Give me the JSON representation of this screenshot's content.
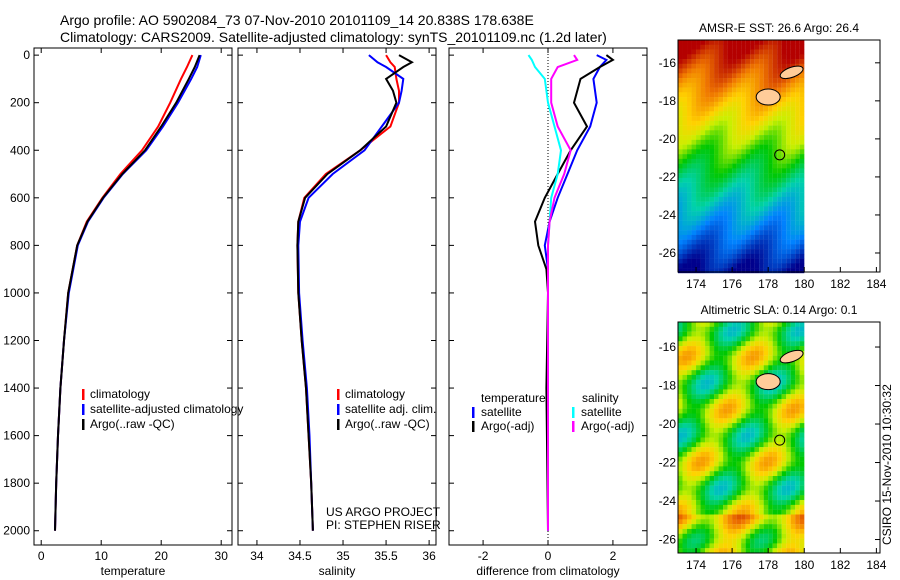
{
  "title_line1": "Argo profile: AO 5902084_73 07-Nov-2010 20101109_14 20.838S 178.638E",
  "title_line2": "Climatology: CARS2009. Satellite-adjusted climatology: synTS_20101109.nc (1.2d later)",
  "side_label": "CSIRO 15-Nov-2010 10:30:32",
  "colors": {
    "climatology": "#ff0000",
    "satellite": "#0000ff",
    "argo": "#000000",
    "sal_sat": "#00ffff",
    "sal_argo": "#ff00ff",
    "land": "#ffcc99"
  },
  "chart_data": [
    {
      "type": "line",
      "id": "temp",
      "xlabel": "temperature",
      "xlim": [
        -1.2,
        31.8
      ],
      "ylim": [
        2060,
        -30
      ],
      "xticks": [
        0,
        10,
        20,
        30
      ],
      "yticks": [
        0,
        200,
        400,
        600,
        800,
        1000,
        1200,
        1400,
        1600,
        1800,
        2000
      ],
      "depth": [
        0,
        50,
        100,
        200,
        300,
        400,
        500,
        600,
        700,
        800,
        1000,
        1200,
        1400,
        1600,
        1800,
        2000
      ],
      "series": [
        {
          "name": "climatology",
          "color": "climatology",
          "values": [
            25.2,
            24.3,
            23.3,
            21.5,
            19.5,
            16.8,
            13.2,
            10.2,
            7.6,
            6.0,
            4.5,
            3.8,
            3.2,
            2.8,
            2.5,
            2.3
          ]
        },
        {
          "name": "satellite-adjusted climatology",
          "color": "satellite",
          "values": [
            26.6,
            26.0,
            25.0,
            22.8,
            20.3,
            17.5,
            13.6,
            10.4,
            7.8,
            6.1,
            4.6,
            3.8,
            3.2,
            2.8,
            2.5,
            2.3
          ]
        },
        {
          "name": "Argo(..raw -QC)",
          "color": "argo",
          "values": [
            26.4,
            25.6,
            24.6,
            22.5,
            20.0,
            17.3,
            13.5,
            10.3,
            7.7,
            6.0,
            4.5,
            3.8,
            3.2,
            2.8,
            2.5,
            2.3
          ]
        }
      ],
      "legend": [
        "climatology",
        "satellite-adjusted climatology",
        "Argo(..raw -QC)"
      ]
    },
    {
      "type": "line",
      "id": "sal",
      "xlabel": "salinity",
      "xlim": [
        33.78,
        36.08
      ],
      "ylim": [
        2060,
        -30
      ],
      "xticks": [
        34,
        34.5,
        35,
        35.5,
        36
      ],
      "depth": [
        0,
        30,
        50,
        100,
        150,
        200,
        300,
        400,
        500,
        600,
        700,
        800,
        1000,
        1200,
        1400,
        1600,
        1800,
        2000
      ],
      "series": [
        {
          "name": "climatology",
          "color": "climatology",
          "values": [
            35.5,
            35.55,
            35.6,
            35.62,
            35.65,
            35.65,
            35.55,
            35.2,
            34.8,
            34.55,
            34.48,
            34.47,
            34.48,
            34.52,
            34.57,
            34.6,
            34.63,
            34.65
          ]
        },
        {
          "name": "satellite adj. clim.",
          "color": "satellite",
          "values": [
            35.3,
            35.4,
            35.5,
            35.7,
            35.68,
            35.65,
            35.45,
            35.25,
            34.88,
            34.6,
            34.5,
            34.48,
            34.49,
            34.53,
            34.58,
            34.61,
            34.63,
            34.65
          ]
        },
        {
          "name": "Argo(..raw -QC)",
          "color": "argo",
          "values": [
            35.65,
            35.8,
            35.7,
            35.5,
            35.58,
            35.62,
            35.5,
            35.2,
            34.82,
            34.56,
            34.48,
            34.47,
            34.48,
            34.52,
            34.57,
            34.6,
            34.63,
            34.65
          ]
        }
      ],
      "legend": [
        "climatology",
        "satellite adj. clim.",
        "Argo(..raw -QC)"
      ],
      "annotation": [
        "US ARGO PROJECT",
        "PI: STEPHEN RISER"
      ]
    },
    {
      "type": "line",
      "id": "diff",
      "xlabel": "difference from climatology",
      "xlim": [
        -3.05,
        3.05
      ],
      "ylim": [
        2060,
        -30
      ],
      "xticks": [
        -2,
        0,
        2
      ],
      "depth": [
        0,
        20,
        50,
        100,
        200,
        300,
        400,
        500,
        600,
        700,
        800,
        900,
        1000,
        1400,
        2000
      ],
      "series": [
        {
          "name": "temperature satellite",
          "color": "satellite",
          "values": [
            1.5,
            1.8,
            1.6,
            1.4,
            1.5,
            1.3,
            0.9,
            0.6,
            0.3,
            0.05,
            -0.1,
            0,
            0,
            0,
            0
          ]
        },
        {
          "name": "temperature Argo(-adj)",
          "color": "argo",
          "values": [
            1.8,
            2.0,
            1.6,
            1.0,
            0.8,
            1.2,
            0.7,
            0.3,
            -0.1,
            -0.4,
            -0.3,
            -0.05,
            0,
            -0.05,
            0
          ]
        },
        {
          "name": "salinity satellite",
          "color": "sal_sat",
          "values": [
            -0.6,
            -0.5,
            -0.4,
            -0.1,
            0,
            0.2,
            0.4,
            0.3,
            0.1,
            0.05,
            0,
            0,
            0,
            0,
            0
          ]
        },
        {
          "name": "salinity Argo(-adj)",
          "color": "sal_argo",
          "values": [
            0.8,
            0.9,
            0.3,
            0.1,
            0.1,
            0.3,
            0.7,
            0.5,
            0.2,
            0.05,
            0,
            0,
            0,
            0,
            0
          ]
        }
      ],
      "legend_titles": [
        "temperature",
        "salinity"
      ],
      "legend": [
        "satellite",
        "Argo(-adj)",
        "satellite",
        "Argo(-adj)"
      ]
    },
    {
      "type": "heatmap",
      "id": "sst",
      "title": "AMSR-E SST: 26.6 Argo: 26.4",
      "xlim": [
        173,
        184.2
      ],
      "ylim": [
        27,
        14.8
      ],
      "xticks": [
        174,
        176,
        178,
        180,
        182,
        184
      ],
      "yticks": [
        -16,
        -18,
        -20,
        -22,
        -24,
        -26
      ],
      "marker": [
        178.638,
        20.838
      ]
    },
    {
      "type": "heatmap",
      "id": "sla",
      "title": "Altimetric SLA: 0.14 Argo: 0.1",
      "xlim": [
        173,
        184.2
      ],
      "ylim": [
        26.7,
        14.7
      ],
      "xticks": [
        174,
        176,
        178,
        180,
        182,
        184
      ],
      "yticks": [
        -16,
        -18,
        -20,
        -22,
        -24,
        -26
      ],
      "marker": [
        178.638,
        20.838
      ]
    }
  ]
}
